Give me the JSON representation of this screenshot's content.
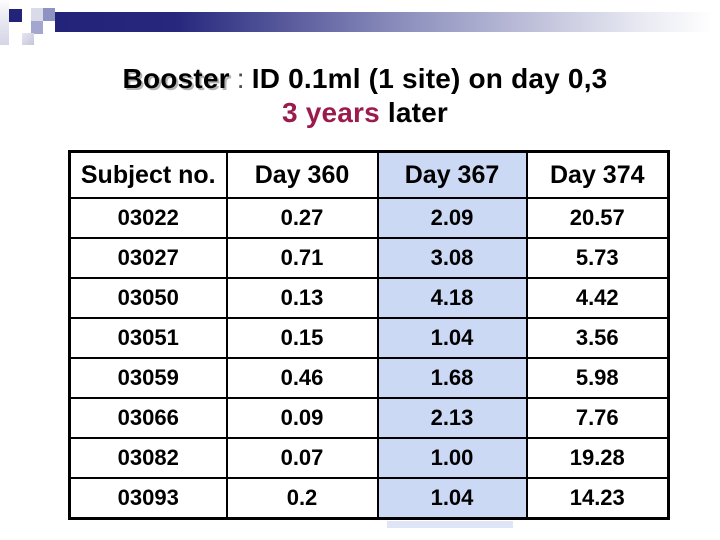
{
  "title": {
    "line1_emphasis": "Booster",
    "line1_separator": ":",
    "line1_rest": "ID 0.1ml (1 site) on day 0,3",
    "line2_highlight": "3 years",
    "line2_rest": " later"
  },
  "table": {
    "columns": [
      "Subject no.",
      "Day 360",
      "Day 367",
      "Day 374"
    ],
    "highlighted_column": "Day 367",
    "highlighted_column_index": 2,
    "rows": [
      [
        "03022",
        "0.27",
        "2.09",
        "20.57"
      ],
      [
        "03027",
        "0.71",
        "3.08",
        "5.73"
      ],
      [
        "03050",
        "0.13",
        "4.18",
        "4.42"
      ],
      [
        "03051",
        "0.15",
        "1.04",
        "3.56"
      ],
      [
        "03059",
        "0.46",
        "1.68",
        "5.98"
      ],
      [
        "03066",
        "0.09",
        "2.13",
        "7.76"
      ],
      [
        "03082",
        "0.07",
        "1.00",
        "19.28"
      ],
      [
        "03093",
        "0.2",
        "1.04",
        "14.23"
      ]
    ]
  },
  "colors": {
    "accent_navy": "#232379",
    "highlight_blue": "#ccd9f5",
    "title_maroon": "#9b1b4d"
  },
  "chart_data": {
    "type": "table",
    "title": "Booster : ID 0.1ml (1 site) on day 0,3 — 3 years later",
    "columns": [
      "Subject no.",
      "Day 360",
      "Day 367",
      "Day 374"
    ],
    "rows": [
      [
        "03022",
        0.27,
        2.09,
        20.57
      ],
      [
        "03027",
        0.71,
        3.08,
        5.73
      ],
      [
        "03050",
        0.13,
        4.18,
        4.42
      ],
      [
        "03051",
        0.15,
        1.04,
        3.56
      ],
      [
        "03059",
        0.46,
        1.68,
        5.98
      ],
      [
        "03066",
        0.09,
        2.13,
        7.76
      ],
      [
        "03082",
        0.07,
        1.0,
        19.28
      ],
      [
        "03093",
        0.2,
        1.04,
        14.23
      ]
    ]
  }
}
